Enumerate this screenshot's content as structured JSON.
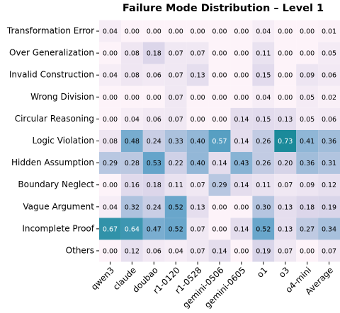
{
  "chart_data": {
    "type": "heatmap",
    "title": "Failure Mode Distribution – Level 1",
    "columns": [
      "qwen3",
      "claude",
      "doubao",
      "r1-0120",
      "r1-0528",
      "gemini-0506",
      "gemini-0605",
      "o1",
      "o3",
      "o4-mini",
      "Average"
    ],
    "rows": [
      "Transformation Error",
      "Over Generalization",
      "Invalid Construction",
      "Wrong Division",
      "Circular Reasoning",
      "Logic Violation",
      "Hidden Assumption",
      "Boundary Neglect",
      "Vague Argument",
      "Incomplete Proof",
      "Others"
    ],
    "values": [
      [
        0.04,
        0,
        0,
        0,
        0,
        0,
        0,
        0.04,
        0,
        0,
        0.01
      ],
      [
        0,
        0.08,
        0.18,
        0.07,
        0.07,
        0,
        0,
        0.11,
        0,
        0,
        0.05
      ],
      [
        0.04,
        0.08,
        0.06,
        0.07,
        0.13,
        0,
        0,
        0.15,
        0,
        0.09,
        0.06
      ],
      [
        0,
        0,
        0,
        0.07,
        0,
        0,
        0,
        0.04,
        0,
        0.05,
        0.02
      ],
      [
        0,
        0.04,
        0.06,
        0.07,
        0,
        0,
        0.14,
        0.15,
        0.13,
        0.05,
        0.06
      ],
      [
        0.08,
        0.48,
        0.24,
        0.33,
        0.4,
        0.57,
        0.14,
        0.26,
        0.73,
        0.41,
        0.36
      ],
      [
        0.29,
        0.28,
        0.53,
        0.22,
        0.4,
        0.14,
        0.43,
        0.26,
        0.2,
        0.36,
        0.31
      ],
      [
        0,
        0.16,
        0.18,
        0.11,
        0.07,
        0.29,
        0.14,
        0.11,
        0.07,
        0.09,
        0.12
      ],
      [
        0.04,
        0.32,
        0.24,
        0.52,
        0.13,
        0,
        0,
        0.3,
        0.13,
        0.18,
        0.19
      ],
      [
        0.67,
        0.64,
        0.47,
        0.52,
        0.07,
        0,
        0.14,
        0.52,
        0.13,
        0.27,
        0.34
      ],
      [
        0,
        0.12,
        0.06,
        0.04,
        0.07,
        0.14,
        0,
        0.19,
        0.07,
        0,
        0.07
      ]
    ],
    "value_labels": [
      [
        "0.04",
        "0.00",
        "0.00",
        "0.00",
        "0.00",
        "0.00",
        "0.00",
        "0.04",
        "0.00",
        "0.00",
        "0.01"
      ],
      [
        "0.00",
        "0.08",
        "0.18",
        "0.07",
        "0.07",
        "0.00",
        "0.00",
        "0.11",
        "0.00",
        "0.00",
        "0.05"
      ],
      [
        "0.04",
        "0.08",
        "0.06",
        "0.07",
        "0.13",
        "0.00",
        "0.00",
        "0.15",
        "0.00",
        "0.09",
        "0.06"
      ],
      [
        "0.00",
        "0.00",
        "0.00",
        "0.07",
        "0.00",
        "0.00",
        "0.00",
        "0.04",
        "0.00",
        "0.05",
        "0.02"
      ],
      [
        "0.00",
        "0.04",
        "0.06",
        "0.07",
        "0.00",
        "0.00",
        "0.14",
        "0.15",
        "0.13",
        "0.05",
        "0.06"
      ],
      [
        "0.08",
        "0.48",
        "0.24",
        "0.33",
        "0.40",
        "0.57",
        "0.14",
        "0.26",
        "0.73",
        "0.41",
        "0.36"
      ],
      [
        "0.29",
        "0.28",
        "0.53",
        "0.22",
        "0.40",
        "0.14",
        "0.43",
        "0.26",
        "0.20",
        "0.36",
        "0.31"
      ],
      [
        "0.00",
        "0.16",
        "0.18",
        "0.11",
        "0.07",
        "0.29",
        "0.14",
        "0.11",
        "0.07",
        "0.09",
        "0.12"
      ],
      [
        "0.04",
        "0.32",
        "0.24",
        "0.52",
        "0.13",
        "0.00",
        "0.00",
        "0.30",
        "0.13",
        "0.18",
        "0.19"
      ],
      [
        "0.67",
        "0.64",
        "0.47",
        "0.52",
        "0.07",
        "0.00",
        "0.14",
        "0.52",
        "0.13",
        "0.27",
        "0.34"
      ],
      [
        "0.00",
        "0.12",
        "0.06",
        "0.04",
        "0.07",
        "0.14",
        "0.00",
        "0.19",
        "0.07",
        "0.00",
        "0.07"
      ]
    ],
    "colors": [
      "#fdf3f9",
      "#dcd6ea",
      "#9fbcda",
      "#5fa2c8",
      "#1b8a9a"
    ]
  }
}
